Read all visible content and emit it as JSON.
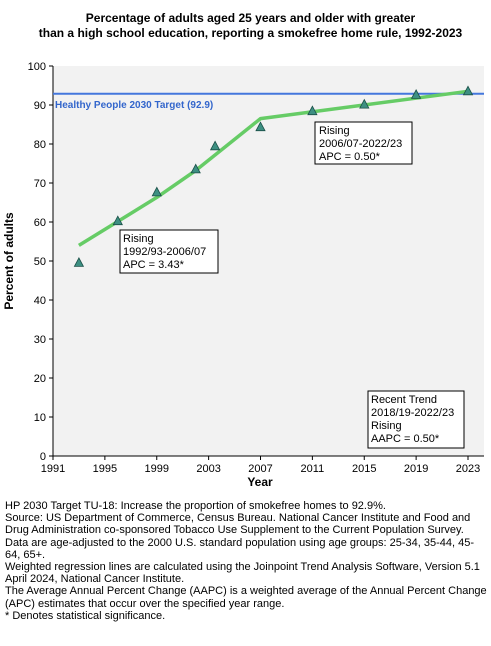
{
  "chart_data": {
    "type": "line",
    "title": [
      "Percentage of adults aged 25 years and older with greater",
      "than a high school education, reporting a smokefree home rule, 1992-2023"
    ],
    "xlabel": "Year",
    "ylabel": "Percent of adults",
    "xlim": [
      1991,
      2023
    ],
    "ylim": [
      0,
      100
    ],
    "xticks": [
      1991,
      1995,
      1999,
      2003,
      2007,
      2011,
      2015,
      2019,
      2023
    ],
    "yticks": [
      0,
      10,
      20,
      30,
      40,
      50,
      60,
      70,
      80,
      90,
      100
    ],
    "grid": false,
    "points": [
      {
        "x": 1993,
        "y": 49.5
      },
      {
        "x": 1996,
        "y": 60.2
      },
      {
        "x": 1999,
        "y": 67.6
      },
      {
        "x": 2002,
        "y": 73.5
      },
      {
        "x": 2003.5,
        "y": 79.4
      },
      {
        "x": 2007,
        "y": 84.3
      },
      {
        "x": 2011,
        "y": 88.4
      },
      {
        "x": 2015,
        "y": 90.1
      },
      {
        "x": 2019,
        "y": 92.6
      },
      {
        "x": 2023,
        "y": 93.5
      }
    ],
    "trend_line": [
      {
        "x": 1993,
        "y": 54.0
      },
      {
        "x": 1999,
        "y": 66.3
      },
      {
        "x": 2002,
        "y": 73.2
      },
      {
        "x": 2007,
        "y": 86.5
      },
      {
        "x": 2023,
        "y": 93.5
      }
    ],
    "target": {
      "label": "Healthy People 2030 Target (92.9)",
      "value": 92.9
    },
    "annotations": [
      {
        "id": "seg1",
        "lines": [
          "Rising",
          "1992/93-2006/07",
          "APC =  3.43*"
        ]
      },
      {
        "id": "seg2",
        "lines": [
          "Rising",
          "2006/07-2022/23",
          "APC =  0.50*"
        ]
      },
      {
        "id": "recent",
        "lines": [
          "Recent Trend",
          "2018/19-2022/23",
          "Rising",
          "AAPC =  0.50*"
        ]
      }
    ],
    "colors": {
      "trend_line": "#66cc66",
      "target_line": "#4477dd",
      "target_text": "#3366cc",
      "marker_fill": "#3d8f82",
      "marker_stroke": "#1a4f47",
      "plot_background": "#f2f2f2"
    }
  },
  "footnotes": [
    "HP 2030 Target TU-18: Increase the proportion of smokefree homes to 92.9%.",
    "Source: US Department of Commerce, Census Bureau. National Cancer Institute and Food and Drug Administration co-sponsored Tobacco Use Supplement to the Current Population Survey.",
    "Data are age-adjusted to the 2000 U.S. standard population using age groups: 25-34, 35-44, 45-64, 65+.",
    "Weighted regression lines are calculated using the Joinpoint Trend Analysis Software, Version 5.1 April 2024, National Cancer Institute.",
    "The Average Annual Percent Change (AAPC) is a weighted average of the Annual Percent Change (APC) estimates that occur over the specified year range.",
    "* Denotes statistical significance."
  ]
}
